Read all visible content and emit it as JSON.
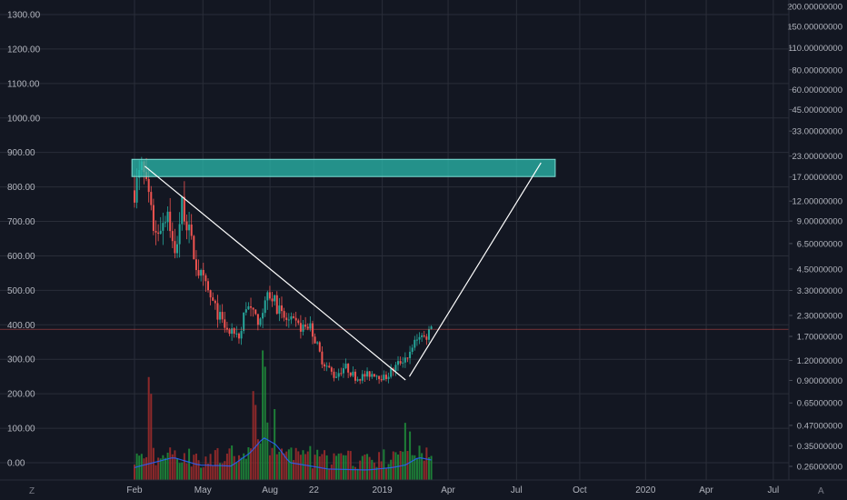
{
  "chart_data": {
    "type": "candlestick",
    "left_axis": {
      "ticks": [
        "1300.00",
        "1200.00",
        "1100.00",
        "1000.00",
        "900.00",
        "800.00",
        "700.00",
        "600.00",
        "500.00",
        "400.00",
        "300.00",
        "200.00",
        "100.00",
        "0.00"
      ],
      "values": [
        1300,
        1200,
        1100,
        1000,
        900,
        800,
        700,
        600,
        500,
        400,
        300,
        200,
        100,
        0
      ]
    },
    "right_axis": {
      "scale": "log",
      "ticks": [
        "200.00000000",
        "150.00000000",
        "110.00000000",
        "80.00000000",
        "60.00000000",
        "45.00000000",
        "33.00000000",
        "23.00000000",
        "17.00000000",
        "12.00000000",
        "9.00000000",
        "6.50000000",
        "4.50000000",
        "3.30000000",
        "2.30000000",
        "1.70000000",
        "1.20000000",
        "0.90000000",
        "0.65000000",
        "0.47000000",
        "0.35000000",
        "0.26000000"
      ]
    },
    "x_axis": {
      "ticks": [
        "Feb",
        "May",
        "Aug",
        "22",
        "2019",
        "Apr",
        "Jul",
        "Oct",
        "2020",
        "Apr",
        "Jul"
      ]
    },
    "price_series": {
      "knots": [
        [
          0,
          790
        ],
        [
          0.06,
          855
        ],
        [
          0.16,
          660
        ],
        [
          0.26,
          735
        ],
        [
          0.31,
          590
        ],
        [
          0.37,
          755
        ],
        [
          0.48,
          570
        ],
        [
          0.62,
          450
        ],
        [
          0.72,
          380
        ],
        [
          0.82,
          360
        ],
        [
          0.86,
          460
        ],
        [
          0.95,
          410
        ],
        [
          1.05,
          490
        ],
        [
          1.15,
          420
        ],
        [
          1.27,
          395
        ],
        [
          1.37,
          390
        ],
        [
          1.45,
          300
        ],
        [
          1.55,
          250
        ],
        [
          1.63,
          280
        ],
        [
          1.72,
          245
        ],
        [
          1.85,
          260
        ],
        [
          1.94,
          245
        ],
        [
          2.05,
          290
        ],
        [
          2.14,
          320
        ],
        [
          2.2,
          375
        ],
        [
          2.25,
          360
        ],
        [
          2.3,
          395
        ]
      ],
      "last_price": 387
    },
    "volume_series": {
      "avg_knots": [
        [
          0,
          25
        ],
        [
          0.3,
          45
        ],
        [
          0.5,
          30
        ],
        [
          0.75,
          28
        ],
        [
          0.9,
          55
        ],
        [
          1.0,
          85
        ],
        [
          1.1,
          70
        ],
        [
          1.2,
          35
        ],
        [
          1.5,
          22
        ],
        [
          1.8,
          20
        ],
        [
          2.0,
          25
        ],
        [
          2.1,
          30
        ],
        [
          2.2,
          45
        ],
        [
          2.3,
          40
        ]
      ],
      "spikes": [
        [
          0.12,
          240
        ],
        [
          0.13,
          150
        ],
        [
          0.93,
          200
        ],
        [
          1.0,
          300
        ],
        [
          1.02,
          130
        ],
        [
          1.08,
          190
        ],
        [
          2.1,
          160
        ],
        [
          2.14,
          130
        ],
        [
          0.75,
          90
        ],
        [
          1.35,
          70
        ]
      ]
    },
    "annotations": {
      "zone": {
        "y_top": 880,
        "y_bottom": 830
      },
      "trendlines": [
        {
          "x1": 0.08,
          "y1": 860,
          "x2": 2.1,
          "y2": 240
        },
        {
          "x1": 2.13,
          "y1": 250,
          "x2": 3.15,
          "y2": 870
        }
      ]
    },
    "colors": {
      "background": "#131722",
      "grid": "#2a2e39",
      "up": "#26a69a",
      "down": "#ef5350",
      "volume_up": "#1f8a3a",
      "volume_down": "#9c2b2b",
      "volume_avg": "#2962ff",
      "zone_fill": "#2bbbad",
      "zone_stroke": "#7fe0d6",
      "trendline": "#ffffff",
      "price_line": "#ef5350"
    }
  },
  "corner_labels": {
    "left": "Z",
    "right": "A"
  }
}
